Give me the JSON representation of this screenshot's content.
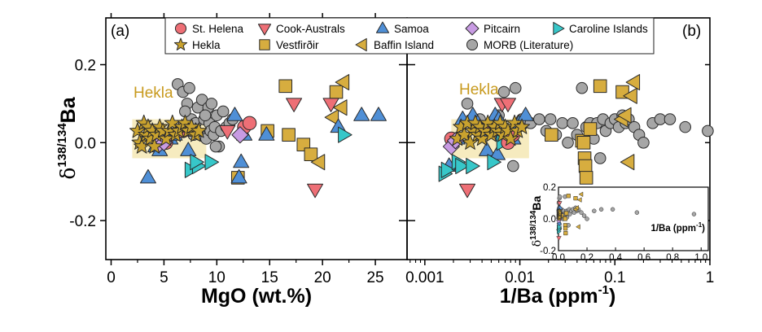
{
  "chart_data": [
    {
      "panel": "(a)",
      "type": "scatter",
      "xlabel": "MgO (wt.%)",
      "ylabel": {
        "prefix": "δ",
        "sup": "138/134",
        "main": "Ba"
      },
      "xlim": [
        -0.5,
        28
      ],
      "ylim": [
        -0.3,
        0.32
      ],
      "xticks": [
        0,
        5,
        10,
        15,
        20,
        25
      ],
      "yticks": [
        -0.2,
        0.0,
        0.2
      ],
      "ytick_labels": [
        "-0.2",
        "0.0",
        "0.2"
      ],
      "annotation": {
        "text": "Hekla",
        "color": "#c89a1e"
      },
      "hekla_box": {
        "x": [
          2.0,
          9.0
        ],
        "y": [
          -0.04,
          0.06
        ],
        "color": "#f5e7b4"
      },
      "series": [
        {
          "name": "MORB (Literature)",
          "marker": "circle-small",
          "color": "#a6a6a6",
          "points": [
            [
              6.3,
              0.15
            ],
            [
              6.8,
              0.13
            ],
            [
              7.2,
              0.1
            ],
            [
              7.4,
              0.14
            ],
            [
              7.6,
              0.06
            ],
            [
              7.8,
              0.02
            ],
            [
              8.0,
              0.05
            ],
            [
              8.2,
              0.09
            ],
            [
              8.4,
              0.02
            ],
            [
              8.6,
              0.11
            ],
            [
              8.8,
              0.06
            ],
            [
              9.0,
              0.01
            ],
            [
              9.2,
              0.09
            ],
            [
              9.3,
              0.05
            ],
            [
              9.4,
              0.03
            ],
            [
              9.5,
              0.1
            ],
            [
              9.7,
              0.02
            ],
            [
              9.8,
              0.04
            ],
            [
              10.0,
              0.07
            ],
            [
              10.2,
              -0.01
            ],
            [
              10.4,
              0.03
            ],
            [
              10.6,
              0.08
            ],
            [
              10.9,
              0.04
            ],
            [
              11.2,
              0.05
            ],
            [
              11.5,
              0.06
            ],
            [
              9.9,
              -0.01
            ],
            [
              7.0,
              0.08
            ],
            [
              8.9,
              0.07
            ]
          ]
        },
        {
          "name": "Hekla",
          "marker": "star",
          "color": "#c9a22e",
          "points": [
            [
              2.5,
              0.03
            ],
            [
              2.7,
              0.0
            ],
            [
              2.9,
              -0.01
            ],
            [
              3.1,
              0.05
            ],
            [
              3.3,
              0.02
            ],
            [
              3.5,
              0.04
            ],
            [
              3.7,
              0.01
            ],
            [
              3.9,
              0.03
            ],
            [
              4.1,
              -0.01
            ],
            [
              4.3,
              0.02
            ],
            [
              4.6,
              0.04
            ],
            [
              4.9,
              0.03
            ],
            [
              5.2,
              0.01
            ],
            [
              5.5,
              0.03
            ],
            [
              5.8,
              0.05
            ],
            [
              6.1,
              0.02
            ],
            [
              6.4,
              0.03
            ],
            [
              6.7,
              0.04
            ],
            [
              7.0,
              0.05
            ],
            [
              7.3,
              0.03
            ],
            [
              7.6,
              0.04
            ],
            [
              8.0,
              0.02
            ],
            [
              8.3,
              0.03
            ]
          ]
        },
        {
          "name": "St. Helena",
          "marker": "circle",
          "color": "#ee6f76",
          "points": [
            [
              12.6,
              0.04
            ],
            [
              13.1,
              0.05
            ],
            [
              6.8,
              0.03
            ],
            [
              5.2,
              0.0
            ]
          ]
        },
        {
          "name": "Cook-Australs",
          "marker": "triangle-down",
          "color": "#ee6f76",
          "points": [
            [
              17.3,
              0.1
            ],
            [
              19.3,
              -0.12
            ],
            [
              20.8,
              0.1
            ],
            [
              11.0,
              0.03
            ]
          ]
        },
        {
          "name": "Samoa",
          "marker": "triangle-up",
          "color": "#4f8fd6",
          "points": [
            [
              3.5,
              -0.09
            ],
            [
              4.2,
              -0.01
            ],
            [
              4.6,
              -0.02
            ],
            [
              5.6,
              0.01
            ],
            [
              6.0,
              0.02
            ],
            [
              7.3,
              -0.02
            ],
            [
              8.0,
              0.03
            ],
            [
              11.7,
              0.07
            ],
            [
              12.1,
              -0.09
            ],
            [
              12.3,
              -0.05
            ],
            [
              12.6,
              0.02
            ],
            [
              14.7,
              0.02
            ],
            [
              21.5,
              0.04
            ],
            [
              23.7,
              0.07
            ],
            [
              25.3,
              0.07
            ]
          ]
        },
        {
          "name": "Pitcairn",
          "marker": "diamond",
          "color": "#c89be3",
          "points": [
            [
              4.5,
              -0.005
            ],
            [
              5.0,
              0.0
            ],
            [
              12.2,
              0.02
            ]
          ]
        },
        {
          "name": "Caroline Islands",
          "marker": "triangle-right",
          "color": "#37c7c9",
          "points": [
            [
              7.5,
              -0.07
            ],
            [
              8.2,
              -0.06
            ],
            [
              9.4,
              -0.05
            ],
            [
              22.0,
              0.02
            ],
            [
              8.0,
              -0.05
            ]
          ]
        },
        {
          "name": "Vestfirðir",
          "marker": "square",
          "color": "#d7ad3f",
          "points": [
            [
              12.0,
              -0.09
            ],
            [
              14.8,
              0.03
            ],
            [
              16.5,
              0.145
            ],
            [
              16.8,
              0.02
            ],
            [
              18.2,
              -0.005
            ],
            [
              18.9,
              -0.03
            ],
            [
              21.3,
              0.13
            ]
          ]
        },
        {
          "name": "Baffin Island",
          "marker": "triangle-left",
          "color": "#d7ad3f",
          "points": [
            [
              19.7,
              -0.05
            ],
            [
              21.0,
              0.065
            ],
            [
              21.8,
              0.09
            ],
            [
              22.0,
              0.155
            ]
          ]
        }
      ]
    },
    {
      "panel": "(b)",
      "type": "scatter",
      "xlabel": {
        "main": "1/Ba (ppm",
        "sup": "-1",
        "end": ")"
      },
      "xscale": "log",
      "xlim": [
        0.00065,
        1.0
      ],
      "ylim": [
        -0.3,
        0.32
      ],
      "xticks": [
        0.001,
        0.01,
        0.1,
        1
      ],
      "xtick_labels": [
        "0.001",
        "0.01",
        "0.1",
        "1"
      ],
      "annotation": {
        "text": "Hekla",
        "color": "#c89a1e"
      },
      "hekla_box": {
        "x": [
          0.0019,
          0.0125
        ],
        "y": [
          -0.04,
          0.06
        ],
        "color": "#f5e7b4"
      },
      "series": [
        {
          "name": "MORB (Literature)",
          "marker": "circle-small",
          "color": "#a6a6a6",
          "points": [
            [
              0.0028,
              0.1
            ],
            [
              0.0038,
              0.06
            ],
            [
              0.0046,
              0.03
            ],
            [
              0.006,
              0.07
            ],
            [
              0.0068,
              0.13
            ],
            [
              0.009,
              0.14
            ],
            [
              0.0105,
              0.06
            ],
            [
              0.013,
              0.05
            ],
            [
              0.016,
              0.06
            ],
            [
              0.019,
              0.03
            ],
            [
              0.021,
              0.06
            ],
            [
              0.024,
              0.02
            ],
            [
              0.028,
              0.05
            ],
            [
              0.032,
              0.0
            ],
            [
              0.036,
              0.05
            ],
            [
              0.04,
              0.02
            ],
            [
              0.045,
              0.14
            ],
            [
              0.05,
              0.04
            ],
            [
              0.055,
              0.05
            ],
            [
              0.06,
              0.01
            ],
            [
              0.065,
              0.05
            ],
            [
              0.07,
              -0.04
            ],
            [
              0.075,
              0.06
            ],
            [
              0.08,
              0.03
            ],
            [
              0.09,
              0.05
            ],
            [
              0.1,
              0.06
            ],
            [
              0.11,
              0.04
            ],
            [
              0.12,
              0.07
            ],
            [
              0.13,
              0.05
            ],
            [
              0.14,
              0.06
            ],
            [
              0.16,
              0.04
            ],
            [
              0.18,
              0.02
            ],
            [
              0.2,
              0.0
            ],
            [
              0.25,
              0.05
            ],
            [
              0.3,
              0.06
            ],
            [
              0.38,
              0.06
            ],
            [
              0.55,
              0.04
            ],
            [
              0.95,
              0.03
            ],
            [
              0.0085,
              -0.06
            ],
            [
              0.009,
              0.04
            ]
          ]
        },
        {
          "name": "Hekla",
          "marker": "star",
          "color": "#c9a22e",
          "points": [
            [
              0.0022,
              0.01
            ],
            [
              0.0024,
              0.04
            ],
            [
              0.0026,
              0.02
            ],
            [
              0.0028,
              0.05
            ],
            [
              0.003,
              0.0
            ],
            [
              0.0032,
              0.03
            ],
            [
              0.0034,
              0.05
            ],
            [
              0.0036,
              0.02
            ],
            [
              0.0038,
              0.04
            ],
            [
              0.004,
              0.01
            ],
            [
              0.0043,
              0.03
            ],
            [
              0.0046,
              0.05
            ],
            [
              0.005,
              0.02
            ],
            [
              0.0054,
              0.04
            ],
            [
              0.0058,
              0.03
            ],
            [
              0.0062,
              0.05
            ],
            [
              0.0066,
              0.02
            ],
            [
              0.007,
              0.04
            ],
            [
              0.0075,
              0.03
            ],
            [
              0.008,
              0.01
            ],
            [
              0.0088,
              0.05
            ],
            [
              0.0095,
              0.03
            ],
            [
              0.0105,
              0.04
            ]
          ]
        },
        {
          "name": "St. Helena",
          "marker": "circle",
          "color": "#ee6f76",
          "points": [
            [
              0.0019,
              0.01
            ],
            [
              0.0052,
              0.04
            ],
            [
              0.0075,
              0.0
            ],
            [
              0.0085,
              0.02
            ]
          ]
        },
        {
          "name": "Cook-Australs",
          "marker": "triangle-down",
          "color": "#ee6f76",
          "points": [
            [
              0.0028,
              -0.12
            ],
            [
              0.0065,
              0.1
            ],
            [
              0.0075,
              0.1
            ],
            [
              0.0038,
              0.02
            ]
          ]
        },
        {
          "name": "Samoa",
          "marker": "triangle-up",
          "color": "#4f8fd6",
          "points": [
            [
              0.0018,
              -0.06
            ],
            [
              0.0022,
              0.01
            ],
            [
              0.0025,
              0.06
            ],
            [
              0.0032,
              0.07
            ],
            [
              0.0036,
              0.05
            ],
            [
              0.004,
              0.03
            ],
            [
              0.0045,
              -0.02
            ],
            [
              0.0048,
              0.03
            ],
            [
              0.0055,
              0.07
            ],
            [
              0.0058,
              -0.03
            ],
            [
              0.006,
              0.06
            ],
            [
              0.0065,
              0.02
            ],
            [
              0.0072,
              0.03
            ],
            [
              0.0085,
              0.01
            ],
            [
              0.0098,
              0.05
            ],
            [
              0.0115,
              0.07
            ]
          ]
        },
        {
          "name": "Pitcairn",
          "marker": "diamond",
          "color": "#c89be3",
          "points": [
            [
              0.0019,
              -0.01
            ],
            [
              0.0021,
              0.005
            ]
          ]
        },
        {
          "name": "Caroline Islands",
          "marker": "triangle-right",
          "color": "#37c7c9",
          "points": [
            [
              0.0016,
              -0.08
            ],
            [
              0.0017,
              -0.07
            ],
            [
              0.0022,
              -0.05
            ],
            [
              0.0024,
              -0.06
            ],
            [
              0.0031,
              -0.06
            ],
            [
              0.0052,
              -0.05
            ],
            [
              0.0065,
              0.0
            ]
          ]
        },
        {
          "name": "Vestfirðir",
          "marker": "square",
          "color": "#d7ad3f",
          "points": [
            [
              0.0215,
              0.02
            ],
            [
              0.045,
              0.005
            ],
            [
              0.047,
              0.0
            ],
            [
              0.048,
              -0.04
            ],
            [
              0.049,
              -0.06
            ],
            [
              0.05,
              -0.09
            ],
            [
              0.055,
              0.035
            ],
            [
              0.07,
              0.145
            ],
            [
              0.12,
              0.13
            ]
          ]
        },
        {
          "name": "Baffin Island",
          "marker": "triangle-left",
          "color": "#d7ad3f",
          "points": [
            [
              0.12,
              0.06
            ],
            [
              0.14,
              -0.05
            ],
            [
              0.15,
              0.12
            ],
            [
              0.16,
              0.155
            ],
            [
              0.13,
              0.07
            ]
          ]
        }
      ],
      "inset": {
        "ylabel": {
          "prefix": "δ",
          "sup": "138/134",
          "main": "Ba"
        },
        "xlabel": {
          "main": "1/Ba (ppm",
          "sup": "-1",
          "end": ")"
        },
        "xlim": [
          0,
          1.05
        ],
        "ylim": [
          -0.2,
          0.2
        ],
        "xticks": [
          0.0,
          0.2,
          0.4,
          0.6,
          0.8,
          1.0
        ],
        "xtick_labels": [
          "0.0",
          "0.2",
          "0.4",
          "0.6",
          "0.8",
          "1.0"
        ],
        "yticks": [
          -0.2,
          0.0,
          0.2
        ],
        "ytick_labels": [
          "-0.2",
          "0.0",
          "0.2"
        ]
      }
    }
  ],
  "legend": {
    "entries": [
      {
        "label": "St. Helena",
        "marker": "circle",
        "color": "#ee6f76"
      },
      {
        "label": "Cook-Australs",
        "marker": "triangle-down",
        "color": "#ee6f76"
      },
      {
        "label": "Samoa",
        "marker": "triangle-up",
        "color": "#4f8fd6"
      },
      {
        "label": "Pitcairn",
        "marker": "diamond",
        "color": "#c89be3"
      },
      {
        "label": "Caroline Islands",
        "marker": "triangle-right",
        "color": "#37c7c9"
      },
      {
        "label": "Hekla",
        "marker": "star",
        "color": "#c9a22e"
      },
      {
        "label": "Vestfirðir",
        "marker": "square",
        "color": "#d7ad3f"
      },
      {
        "label": "Baffin Island",
        "marker": "triangle-left",
        "color": "#d7ad3f"
      },
      {
        "label": "MORB (Literature)",
        "marker": "circle",
        "color": "#a6a6a6"
      }
    ]
  }
}
